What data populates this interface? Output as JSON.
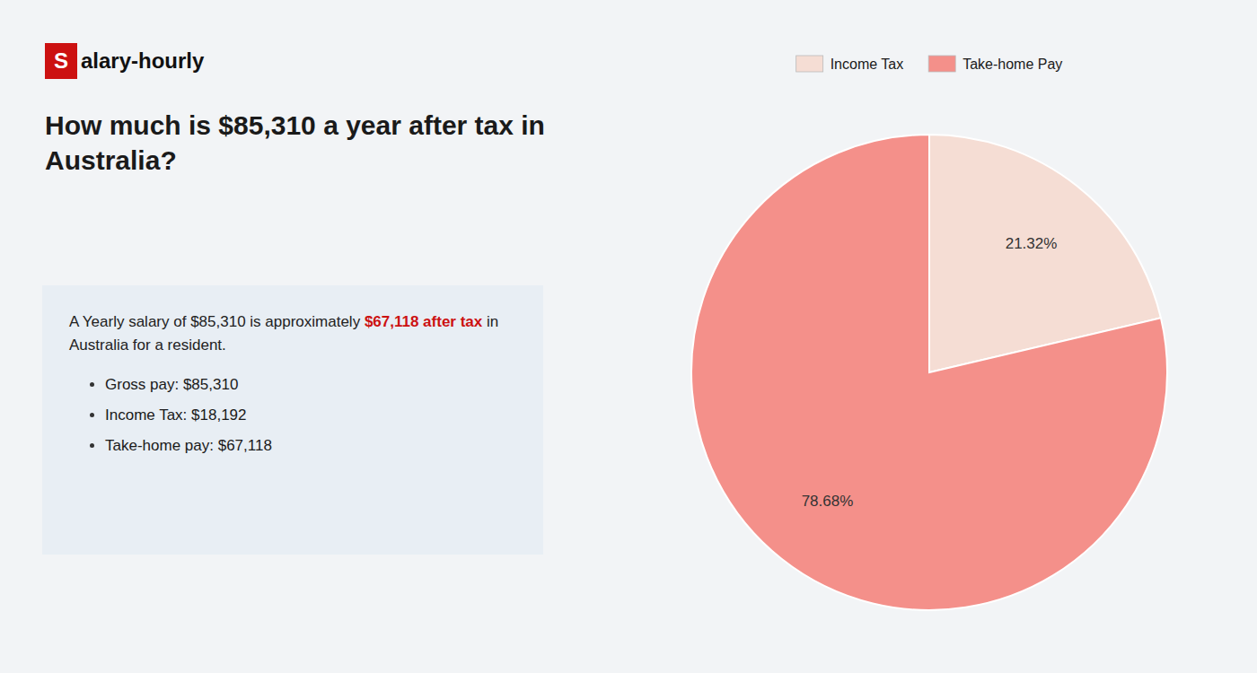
{
  "chart_data": {
    "type": "pie",
    "title": "How much is $85,310 a year after tax in Australia?",
    "categories": [
      "Income Tax",
      "Take-home Pay"
    ],
    "values": [
      21.32,
      78.68
    ],
    "value_labels": [
      "21.32%",
      "78.68%"
    ],
    "colors": [
      "#f5ddd4",
      "#f4908a"
    ],
    "data_labels": true,
    "legend": "top",
    "annotations": [
      {
        "segments": [
          {
            "text": "S",
            "color": "#cc1111"
          },
          {
            "text": "alary-hourly"
          }
        ]
      },
      {
        "segments": [
          {
            "text": "A Yearly salary of $85,310 is approximately "
          },
          {
            "text": "$67,118 after tax",
            "color": "#cc1111"
          },
          {
            "text": " in"
          }
        ]
      },
      {
        "segments": [
          {
            "text": "Australia for a resident."
          }
        ]
      },
      {
        "items": [
          "Gross pay: $85,310",
          "Income Tax: $18,192",
          "Take-home pay: $67,118"
        ]
      }
    ]
  }
}
